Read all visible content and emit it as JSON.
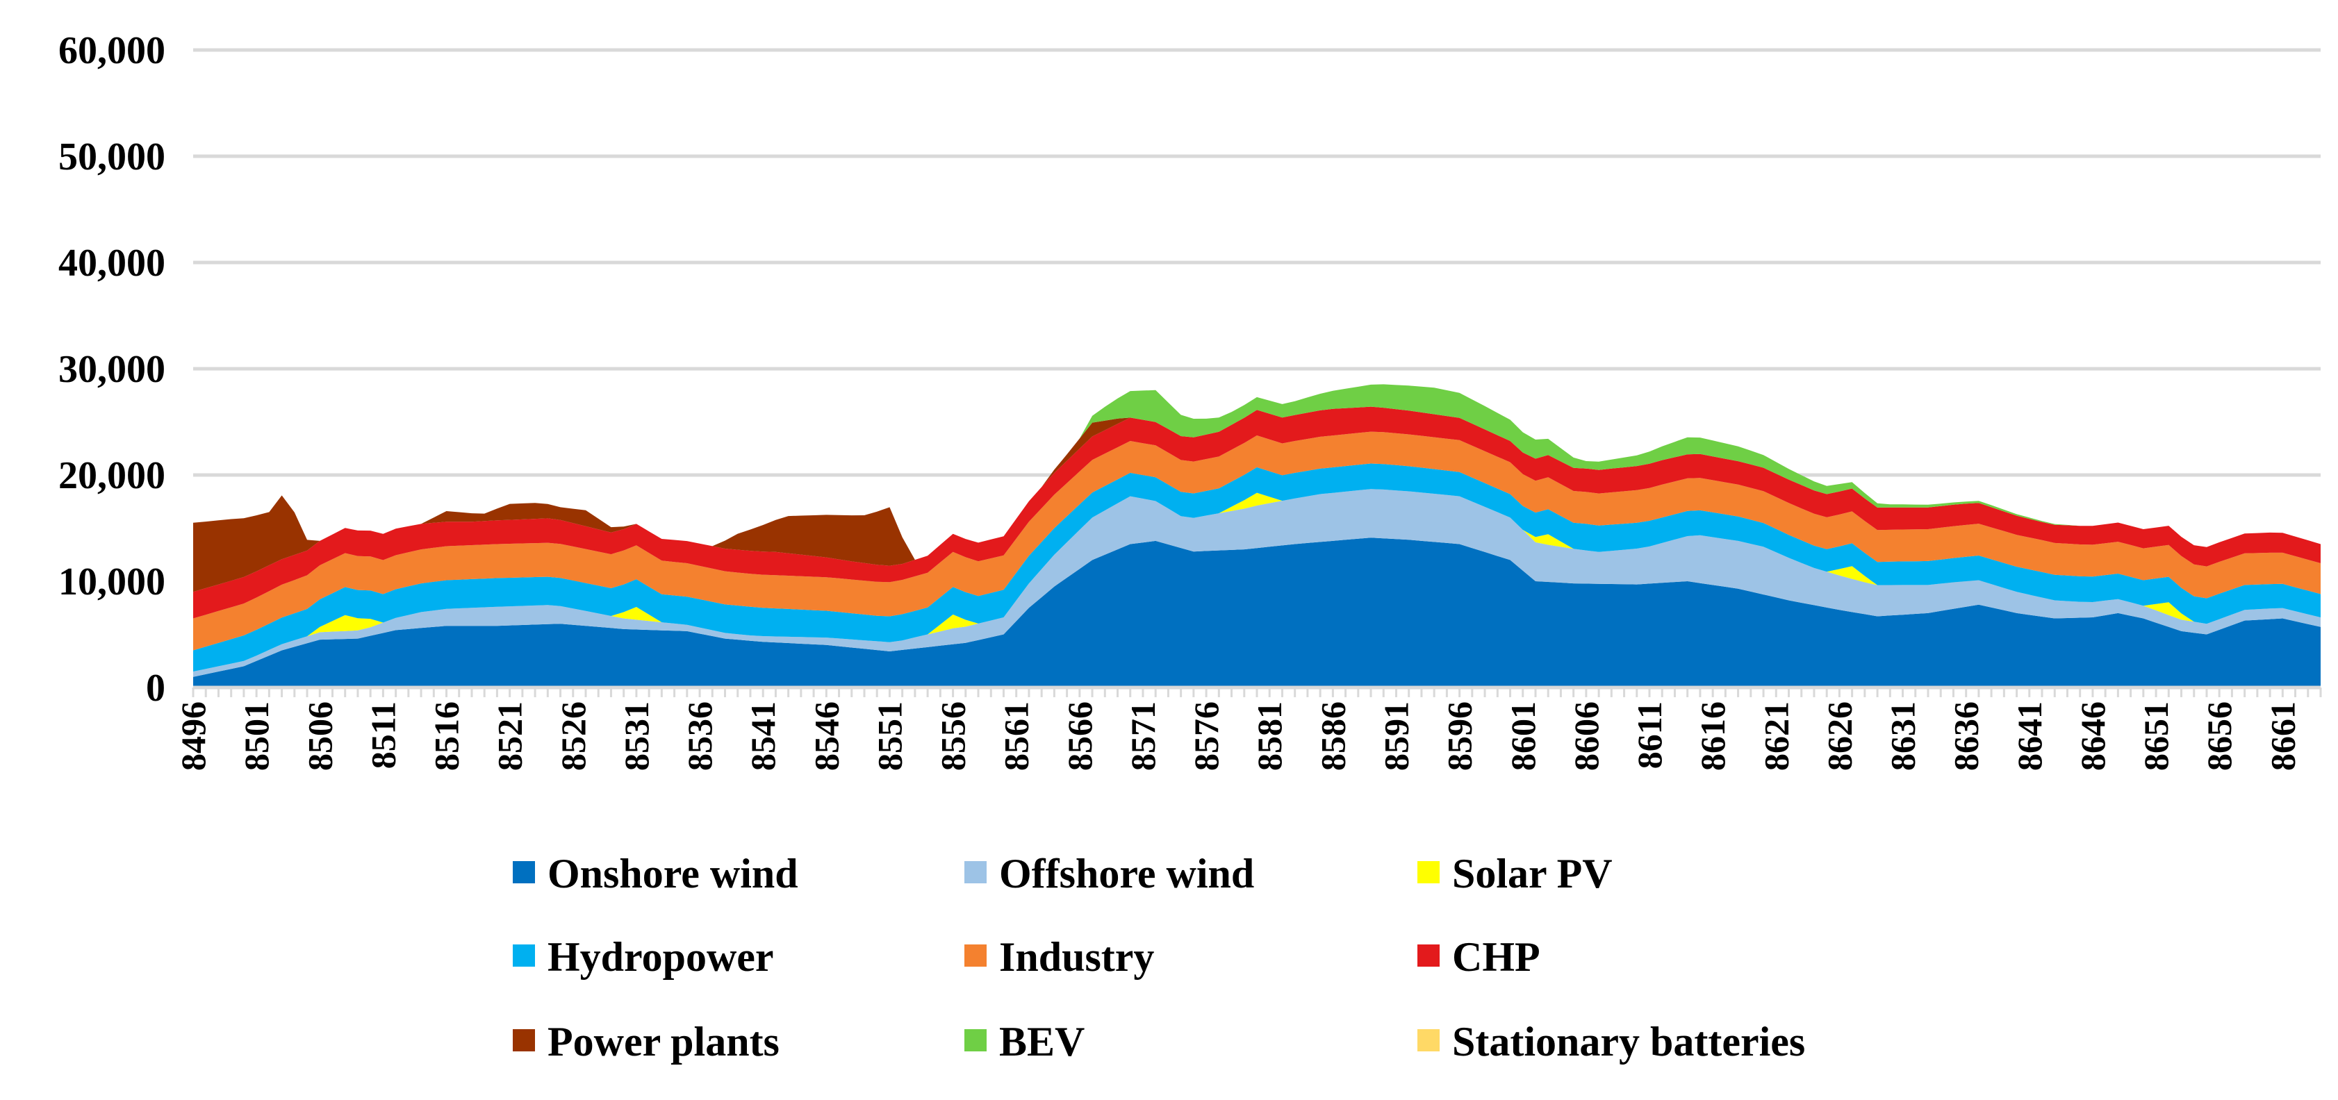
{
  "chart_data": {
    "type": "area",
    "stacked": true,
    "title": "",
    "xlabel": "",
    "ylabel": "",
    "ylim": [
      0,
      60000
    ],
    "yticks": [
      0,
      10000,
      20000,
      30000,
      40000,
      50000,
      60000
    ],
    "ytick_labels": [
      "0",
      "10,000",
      "20,000",
      "30,000",
      "40,000",
      "50,000",
      "60,000"
    ],
    "x_start": 8496,
    "x_end": 8664,
    "xtick_labels": [
      "8496",
      "8501",
      "8506",
      "8511",
      "8516",
      "8521",
      "8526",
      "8531",
      "8536",
      "8541",
      "8546",
      "8551",
      "8556",
      "8561",
      "8566",
      "8571",
      "8576",
      "8581",
      "8586",
      "8591",
      "8596",
      "8601",
      "8606",
      "8611",
      "8616",
      "8621",
      "8626",
      "8631",
      "8636",
      "8641",
      "8646",
      "8651",
      "8656",
      "8661"
    ],
    "grid": true,
    "legend": "bottom",
    "series": [
      {
        "name": "Onshore wind",
        "color": "#0070c0",
        "keys": [
          [
            8496,
            1000
          ],
          [
            8500,
            2000
          ],
          [
            8503,
            3500
          ],
          [
            8506,
            4500
          ],
          [
            8509,
            4600
          ],
          [
            8512,
            5400
          ],
          [
            8516,
            5800
          ],
          [
            8520,
            5800
          ],
          [
            8525,
            6000
          ],
          [
            8530,
            5500
          ],
          [
            8535,
            5300
          ],
          [
            8538,
            4600
          ],
          [
            8541,
            4300
          ],
          [
            8546,
            4000
          ],
          [
            8551,
            3400
          ],
          [
            8554,
            3800
          ],
          [
            8557,
            4200
          ],
          [
            8560,
            5000
          ],
          [
            8562,
            7500
          ],
          [
            8564,
            9500
          ],
          [
            8567,
            12000
          ],
          [
            8570,
            13500
          ],
          [
            8572,
            13800
          ],
          [
            8575,
            12800
          ],
          [
            8579,
            13000
          ],
          [
            8583,
            13500
          ],
          [
            8586,
            13800
          ],
          [
            8589,
            14100
          ],
          [
            8592,
            13900
          ],
          [
            8596,
            13500
          ],
          [
            8600,
            12000
          ],
          [
            8602,
            10000
          ],
          [
            8605,
            9800
          ],
          [
            8610,
            9700
          ],
          [
            8614,
            10000
          ],
          [
            8618,
            9300
          ],
          [
            8622,
            8200
          ],
          [
            8626,
            7300
          ],
          [
            8629,
            6700
          ],
          [
            8633,
            7000
          ],
          [
            8637,
            7800
          ],
          [
            8640,
            7000
          ],
          [
            8643,
            6500
          ],
          [
            8646,
            6600
          ],
          [
            8648,
            7000
          ],
          [
            8650,
            6500
          ],
          [
            8653,
            5300
          ],
          [
            8655,
            5000
          ],
          [
            8658,
            6300
          ],
          [
            8661,
            6500
          ],
          [
            8664,
            5700
          ]
        ]
      },
      {
        "name": "Offshore wind",
        "color": "#9dc3e6",
        "keys": [
          [
            8496,
            500
          ],
          [
            8501,
            500
          ],
          [
            8506,
            700
          ],
          [
            8510,
            800
          ],
          [
            8514,
            1500
          ],
          [
            8520,
            1800
          ],
          [
            8524,
            1800
          ],
          [
            8530,
            1000
          ],
          [
            8535,
            600
          ],
          [
            8540,
            500
          ],
          [
            8546,
            700
          ],
          [
            8552,
            900
          ],
          [
            8556,
            1500
          ],
          [
            8560,
            1600
          ],
          [
            8564,
            3000
          ],
          [
            8567,
            4000
          ],
          [
            8570,
            4500
          ],
          [
            8574,
            3000
          ],
          [
            8580,
            4000
          ],
          [
            8585,
            4500
          ],
          [
            8590,
            4600
          ],
          [
            8596,
            4500
          ],
          [
            8600,
            4000
          ],
          [
            8603,
            3500
          ],
          [
            8607,
            3000
          ],
          [
            8611,
            3500
          ],
          [
            8615,
            4500
          ],
          [
            8620,
            4500
          ],
          [
            8624,
            3500
          ],
          [
            8628,
            3000
          ],
          [
            8631,
            2800
          ],
          [
            8635,
            2500
          ],
          [
            8640,
            2000
          ],
          [
            8645,
            1500
          ],
          [
            8650,
            1200
          ],
          [
            8655,
            1000
          ],
          [
            8660,
            1000
          ],
          [
            8664,
            900
          ]
        ]
      },
      {
        "name": "Solar PV",
        "color": "#ffff00",
        "keys": [
          [
            8496,
            0
          ],
          [
            8505,
            0
          ],
          [
            8507,
            1000
          ],
          [
            8508,
            1500
          ],
          [
            8510,
            800
          ],
          [
            8511,
            0
          ],
          [
            8529,
            0
          ],
          [
            8531,
            1200
          ],
          [
            8533,
            0
          ],
          [
            8554,
            0
          ],
          [
            8556,
            1300
          ],
          [
            8558,
            0
          ],
          [
            8577,
            0
          ],
          [
            8579,
            800
          ],
          [
            8580,
            1200
          ],
          [
            8582,
            0
          ],
          [
            8601,
            0
          ],
          [
            8603,
            1000
          ],
          [
            8605,
            0
          ],
          [
            8625,
            0
          ],
          [
            8627,
            1200
          ],
          [
            8629,
            0
          ],
          [
            8650,
            0
          ],
          [
            8652,
            1200
          ],
          [
            8654,
            0
          ],
          [
            8664,
            0
          ]
        ]
      },
      {
        "name": "Hydropower",
        "color": "#00b0f0",
        "keys": [
          [
            8496,
            2000
          ],
          [
            8500,
            2400
          ],
          [
            8506,
            2600
          ],
          [
            8512,
            2700
          ],
          [
            8520,
            2700
          ],
          [
            8530,
            2600
          ],
          [
            8540,
            2700
          ],
          [
            8550,
            2400
          ],
          [
            8556,
            2600
          ],
          [
            8562,
            2600
          ],
          [
            8570,
            2200
          ],
          [
            8580,
            2400
          ],
          [
            8590,
            2400
          ],
          [
            8600,
            2200
          ],
          [
            8606,
            2500
          ],
          [
            8612,
            2400
          ],
          [
            8618,
            2300
          ],
          [
            8624,
            2100
          ],
          [
            8630,
            2200
          ],
          [
            8636,
            2300
          ],
          [
            8642,
            2400
          ],
          [
            8650,
            2400
          ],
          [
            8656,
            2400
          ],
          [
            8664,
            2200
          ]
        ]
      },
      {
        "name": "Industry",
        "color": "#f4812f",
        "keys": [
          [
            8496,
            3000
          ],
          [
            8500,
            3000
          ],
          [
            8506,
            3200
          ],
          [
            8512,
            3200
          ],
          [
            8520,
            3200
          ],
          [
            8530,
            3200
          ],
          [
            8540,
            3100
          ],
          [
            8550,
            3200
          ],
          [
            8556,
            3300
          ],
          [
            8562,
            3200
          ],
          [
            8570,
            3000
          ],
          [
            8580,
            3000
          ],
          [
            8590,
            3000
          ],
          [
            8600,
            3000
          ],
          [
            8606,
            3000
          ],
          [
            8612,
            3100
          ],
          [
            8618,
            3000
          ],
          [
            8624,
            3000
          ],
          [
            8630,
            3000
          ],
          [
            8636,
            3000
          ],
          [
            8642,
            3000
          ],
          [
            8650,
            3000
          ],
          [
            8656,
            3000
          ],
          [
            8664,
            2900
          ]
        ]
      },
      {
        "name": "CHP",
        "color": "#e31a1c",
        "keys": [
          [
            8496,
            2500
          ],
          [
            8500,
            2500
          ],
          [
            8506,
            2300
          ],
          [
            8512,
            2500
          ],
          [
            8518,
            2200
          ],
          [
            8524,
            2300
          ],
          [
            8530,
            2000
          ],
          [
            8536,
            2100
          ],
          [
            8542,
            2200
          ],
          [
            8548,
            1700
          ],
          [
            8552,
            1500
          ],
          [
            8556,
            1700
          ],
          [
            8560,
            1800
          ],
          [
            8563,
            2000
          ],
          [
            8567,
            2200
          ],
          [
            8572,
            2200
          ],
          [
            8576,
            2300
          ],
          [
            8580,
            2400
          ],
          [
            8586,
            2500
          ],
          [
            8590,
            2300
          ],
          [
            8596,
            2100
          ],
          [
            8600,
            2000
          ],
          [
            8606,
            2200
          ],
          [
            8612,
            2300
          ],
          [
            8618,
            2200
          ],
          [
            8624,
            2200
          ],
          [
            8630,
            2100
          ],
          [
            8636,
            2000
          ],
          [
            8642,
            1700
          ],
          [
            8648,
            1800
          ],
          [
            8654,
            1800
          ],
          [
            8660,
            1900
          ],
          [
            8664,
            1800
          ]
        ]
      },
      {
        "name": "Power plants",
        "color": "#993300",
        "keys": [
          [
            8496,
            6500
          ],
          [
            8499,
            5800
          ],
          [
            8502,
            5000
          ],
          [
            8503,
            6000
          ],
          [
            8504,
            4000
          ],
          [
            8505,
            1000
          ],
          [
            8506,
            0
          ],
          [
            8514,
            0
          ],
          [
            8516,
            1000
          ],
          [
            8519,
            700
          ],
          [
            8521,
            1500
          ],
          [
            8523,
            1500
          ],
          [
            8525,
            1200
          ],
          [
            8527,
            1500
          ],
          [
            8529,
            500
          ],
          [
            8531,
            0
          ],
          [
            8537,
            0
          ],
          [
            8539,
            1500
          ],
          [
            8541,
            2500
          ],
          [
            8543,
            3500
          ],
          [
            8546,
            4000
          ],
          [
            8549,
            4500
          ],
          [
            8551,
            5500
          ],
          [
            8552,
            2500
          ],
          [
            8553,
            0
          ],
          [
            8563,
            0
          ],
          [
            8565,
            600
          ],
          [
            8567,
            1300
          ],
          [
            8569,
            500
          ],
          [
            8570,
            0
          ],
          [
            8664,
            0
          ]
        ]
      },
      {
        "name": "BEV",
        "color": "#6fcf45",
        "keys": [
          [
            8496,
            0
          ],
          [
            8566,
            0
          ],
          [
            8568,
            1300
          ],
          [
            8570,
            2500
          ],
          [
            8572,
            3000
          ],
          [
            8574,
            2000
          ],
          [
            8576,
            1500
          ],
          [
            8578,
            1200
          ],
          [
            8580,
            1200
          ],
          [
            8583,
            1300
          ],
          [
            8586,
            1700
          ],
          [
            8590,
            2200
          ],
          [
            8594,
            2500
          ],
          [
            8598,
            2200
          ],
          [
            8602,
            1800
          ],
          [
            8606,
            700
          ],
          [
            8610,
            1000
          ],
          [
            8614,
            1600
          ],
          [
            8618,
            1400
          ],
          [
            8622,
            1000
          ],
          [
            8626,
            700
          ],
          [
            8628,
            500
          ],
          [
            8630,
            300
          ],
          [
            8636,
            200
          ],
          [
            8638,
            200
          ],
          [
            8642,
            100
          ],
          [
            8645,
            0
          ],
          [
            8664,
            0
          ]
        ]
      },
      {
        "name": "Stationary batteries",
        "color": "#ffd966",
        "keys": [
          [
            8496,
            0
          ],
          [
            8664,
            0
          ]
        ]
      }
    ]
  }
}
